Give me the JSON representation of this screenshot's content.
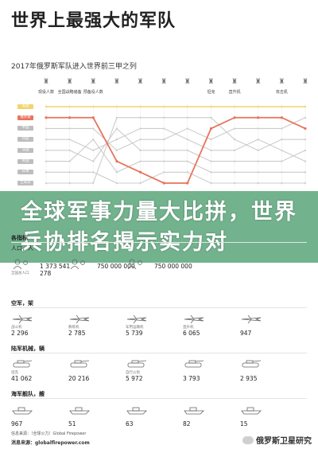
{
  "header": {
    "title": "世界上最强大的军队",
    "subtitle": "2017年俄罗斯军队进入世界前三甲之列"
  },
  "chart_data": {
    "type": "line",
    "categories": [
      "现役人数",
      "全国战略储备",
      "预备役人数",
      "",
      "",
      "",
      "",
      "坦克",
      "直升机",
      "",
      "攻击机",
      ""
    ],
    "series": [
      {
        "name": "美国",
        "values": [
          1,
          1,
          1,
          1,
          1,
          1,
          1,
          1,
          1,
          1,
          1,
          1
        ]
      },
      {
        "name": "俄罗斯",
        "values": [
          2,
          2,
          2,
          6,
          7,
          8,
          8,
          3,
          2,
          2,
          2,
          3
        ]
      },
      {
        "name": "中国",
        "values": [
          3,
          3,
          3,
          5,
          4,
          4,
          3,
          4,
          3,
          3,
          3,
          2
        ]
      },
      {
        "name": "印度",
        "values": [
          4,
          4,
          5,
          4,
          3,
          3,
          4,
          5,
          5,
          4,
          5,
          6
        ]
      },
      {
        "name": "法国",
        "values": [
          5,
          5,
          6,
          3,
          5,
          5,
          5,
          6,
          6,
          6,
          6,
          5
        ]
      },
      {
        "name": "英国",
        "values": [
          6,
          6,
          4,
          7,
          6,
          6,
          6,
          7,
          7,
          7,
          7,
          7
        ]
      },
      {
        "name": "日本",
        "values": [
          7,
          7,
          7,
          8,
          8,
          7,
          7,
          8,
          8,
          8,
          8,
          8
        ]
      },
      {
        "name": "土耳其",
        "values": [
          8,
          8,
          8,
          2,
          2,
          2,
          2,
          2,
          4,
          5,
          4,
          4
        ]
      }
    ],
    "colors": {
      "highlight": "#e8735b",
      "other": "#cccccc",
      "top": "#f3d36b"
    }
  },
  "banner": {
    "text": "全球军事力量大比拼，世界兵协排名揭示实力对"
  },
  "sections": [
    {
      "head": "各指标",
      "head_extra": "",
      "rows": [
        {
          "label": "人口，人",
          "items": [
            {
              "cap": "全国总人口",
              "value": "1 373 541 278",
              "badge": "",
              "color": ""
            },
            {
              "cap": "",
              "value": "750 000 000",
              "badge": "",
              "color": ""
            },
            {
              "cap": "",
              "value": "750 000 000",
              "badge": "",
              "color": ""
            }
          ]
        }
      ]
    },
    {
      "head": "空军，架",
      "items": [
        {
          "cap": "战斗机",
          "value": "2 296",
          "badge": "",
          "color": ""
        },
        {
          "cap": "教练机",
          "value": "2 785",
          "badge": "",
          "color": ""
        },
        {
          "cap": "军用运输机",
          "value": "5 739",
          "badge": "",
          "color": ""
        },
        {
          "cap": "直升机",
          "value": "6 065",
          "badge": "",
          "color": ""
        },
        {
          "cap": "",
          "value": "947",
          "badge": "",
          "color": ""
        }
      ]
    },
    {
      "head": "陆军机械，辆",
      "items": [
        {
          "cap": "坦克",
          "value": "41 062",
          "badge": "",
          "color": ""
        },
        {
          "cap": "",
          "value": "20 216",
          "badge": "",
          "color": ""
        },
        {
          "cap": "自行火炮",
          "value": "5 972",
          "badge": "",
          "color": ""
        },
        {
          "cap": "",
          "value": "3 793",
          "badge": "",
          "color": ""
        },
        {
          "cap": "",
          "value": "2 935",
          "badge": "",
          "color": ""
        }
      ]
    },
    {
      "head": "海军舰队，艘",
      "items": [
        {
          "cap": "",
          "value": "967",
          "badge": "",
          "color": ""
        },
        {
          "cap": "",
          "value": "51",
          "badge": "",
          "color": ""
        },
        {
          "cap": "",
          "value": "63",
          "badge": "",
          "color": ""
        },
        {
          "cap": "",
          "value": "82",
          "badge": "",
          "color": ""
        },
        {
          "cap": "",
          "value": "15",
          "badge": "",
          "color": ""
        }
      ]
    }
  ],
  "footer": {
    "source_line": "信息来源：（全球火力）Global Firepower",
    "url": "消息来源：globalfirepower.com",
    "watermark": "俄罗斯卫星研究"
  }
}
